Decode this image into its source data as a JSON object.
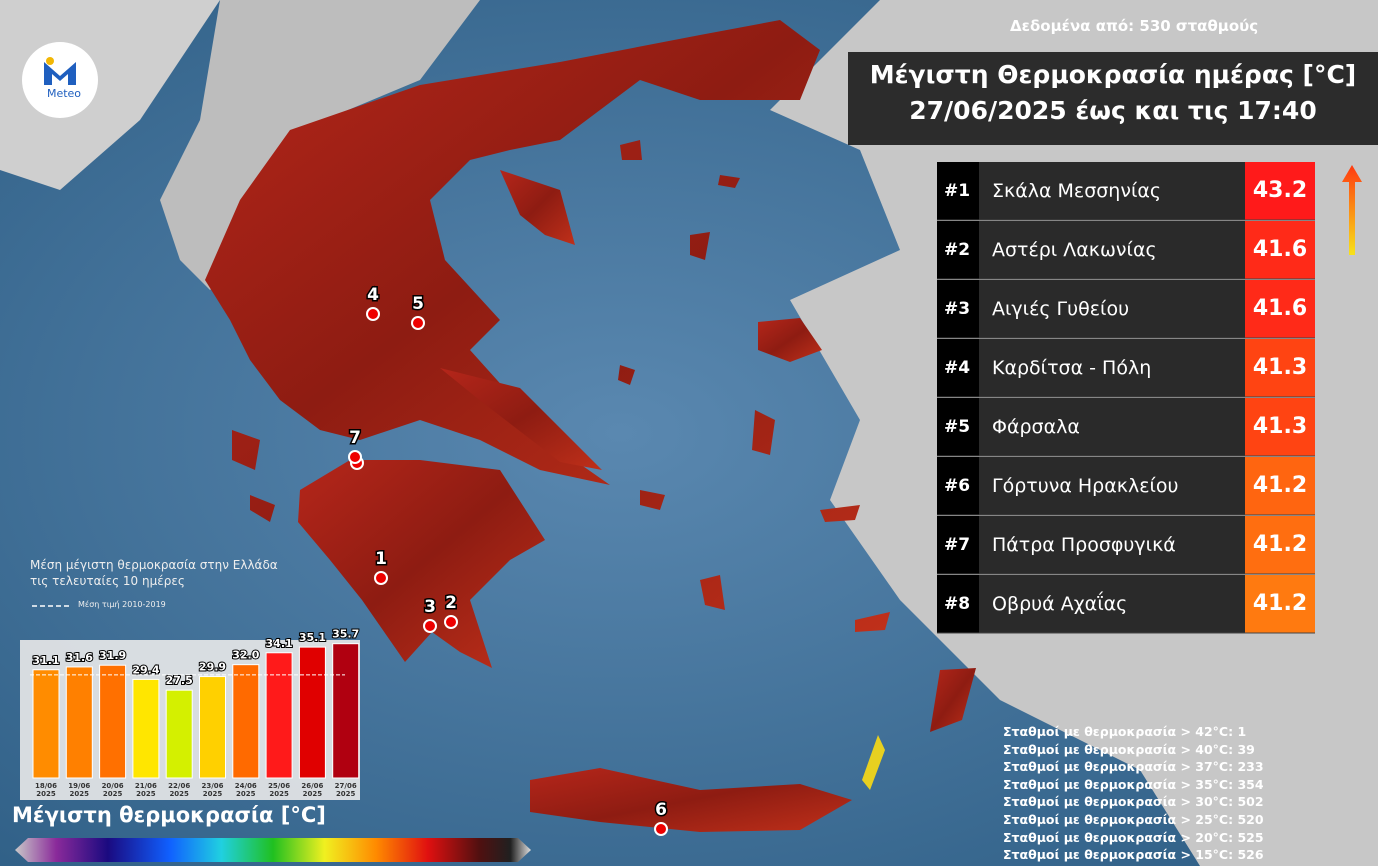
{
  "source": "Δεδομένα από: 530 σταθμούς",
  "logo": "Meteo",
  "title": [
    "Μέγιστη Θερμοκρασία ημέρας [°C]",
    "27/06/2025 έως και τις 17:40"
  ],
  "ranking": [
    {
      "rank": "#1",
      "station": "Σκάλα Μεσσηνίας",
      "value": 43.2,
      "color": "#ff1a1a"
    },
    {
      "rank": "#2",
      "station": "Αστέρι Λακωνίας",
      "value": 41.6,
      "color": "#ff2a18"
    },
    {
      "rank": "#3",
      "station": "Αιγιές Γυθείου",
      "value": 41.6,
      "color": "#ff2a18"
    },
    {
      "rank": "#4",
      "station": "Καρδίτσα - Πόλη",
      "value": 41.3,
      "color": "#ff4412"
    },
    {
      "rank": "#5",
      "station": "Φάρσαλα",
      "value": 41.3,
      "color": "#ff4412"
    },
    {
      "rank": "#6",
      "station": "Γόρτυνα Ηρακλείου",
      "value": 41.2,
      "color": "#ff6510"
    },
    {
      "rank": "#7",
      "station": "Πάτρα Προσφυγικά",
      "value": 41.2,
      "color": "#ff6e10"
    },
    {
      "rank": "#8",
      "station": "Οβρυά Αχαΐας",
      "value": 41.2,
      "color": "#ff7a10"
    }
  ],
  "markers": [
    "1",
    "2",
    "3",
    "4",
    "5",
    "6",
    "7"
  ],
  "station_counts": [
    "Σταθμοί με θερμοκρασία > 42°C: 1",
    "Σταθμοί με θερμοκρασία > 40°C: 39",
    "Σταθμοί με θερμοκρασία > 37°C: 233",
    "Σταθμοί με θερμοκρασία > 35°C: 354",
    "Σταθμοί με θερμοκρασία > 30°C: 502",
    "Σταθμοί με θερμοκρασία > 25°C: 520",
    "Σταθμοί με θερμοκρασία > 20°C: 525",
    "Σταθμοί με θερμοκρασία > 15°C: 526"
  ],
  "colorbar_title": "Μέγιστη θερμοκρασία [°C]",
  "chart_data": {
    "type": "bar",
    "title": "Μέση μέγιστη θερμοκρασία στην Ελλάδα",
    "subtitle": "τις τελευταίες 10 ημέρες",
    "categories": [
      "18/06\n2025",
      "19/06\n2025",
      "20/06\n2025",
      "21/06\n2025",
      "22/06\n2025",
      "23/06\n2025",
      "24/06\n2025",
      "25/06\n2025",
      "26/06\n2025",
      "27/06\n2025"
    ],
    "values": [
      31.1,
      31.6,
      31.9,
      29.4,
      27.5,
      29.9,
      32.0,
      34.1,
      35.1,
      35.7
    ],
    "value_labels": [
      "31.1",
      "31.6",
      "31.9",
      "29.4",
      "27.5",
      "29.9",
      "32.0",
      "34.1",
      "35.1",
      "35.7"
    ],
    "colors": [
      "#ff8c00",
      "#ff8000",
      "#ff7000",
      "#ffe600",
      "#d4f000",
      "#ffd000",
      "#ff6a00",
      "#ff1a1a",
      "#e00000",
      "#b00010"
    ],
    "ylim": [
      12,
      36
    ],
    "reference": {
      "value": 30.2,
      "label": "Μέση τιμή 2010-2019"
    }
  }
}
